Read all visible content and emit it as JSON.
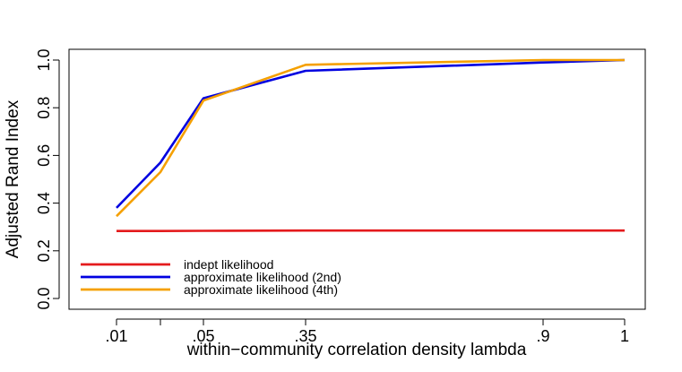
{
  "chart_data": {
    "type": "line",
    "title": "",
    "xlabel": "within−community correlation density lambda",
    "ylabel": "Adjusted Rand Index",
    "x_tick_labels": [
      ".01",
      "",
      ".05",
      ".35",
      ".9",
      "1"
    ],
    "ylim": [
      0,
      1
    ],
    "y_ticks": [
      0.0,
      0.2,
      0.4,
      0.6,
      0.8,
      1.0
    ],
    "y_tick_labels": [
      "0.0",
      "0.2",
      "0.4",
      "0.6",
      "0.8",
      "1.0"
    ],
    "grid": false,
    "legend_position": "bottom-left",
    "series": [
      {
        "name": "indept likelihood",
        "color": "#e41a1c",
        "values": [
          0.283,
          0.283,
          0.284,
          0.285,
          0.285,
          0.285
        ]
      },
      {
        "name": "approximate likelihood (2nd)",
        "color": "#0000e0",
        "values": [
          0.38,
          0.57,
          0.84,
          0.955,
          0.99,
          1.0
        ]
      },
      {
        "name": "approximate likelihood (4th)",
        "color": "#f5a000",
        "values": [
          0.345,
          0.53,
          0.83,
          0.98,
          1.0,
          1.0
        ]
      }
    ]
  }
}
